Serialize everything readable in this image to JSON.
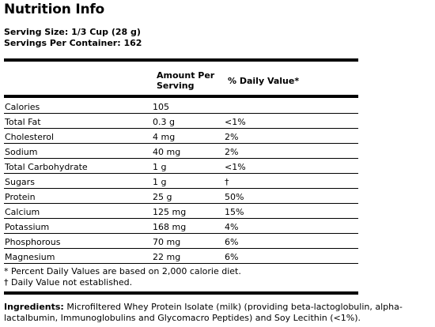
{
  "title": "Nutrition Info",
  "serving_size": "Serving Size: 1/3 Cup (28 g)",
  "servings_per_container": "Servings Per Container: 162",
  "table": {
    "header_amount": "Amount Per Serving",
    "header_dv": "% Daily Value*",
    "rows": [
      {
        "name": "Calories",
        "amount": "105",
        "dv": ""
      },
      {
        "name": "Total Fat",
        "amount": "0.3 g",
        "dv": "<1%"
      },
      {
        "name": "Cholesterol",
        "amount": "4 mg",
        "dv": "2%"
      },
      {
        "name": "Sodium",
        "amount": "40 mg",
        "dv": "2%"
      },
      {
        "name": "Total Carbohydrate",
        "amount": "1 g",
        "dv": "<1%"
      },
      {
        "name": "Sugars",
        "amount": "1 g",
        "dv": "†"
      },
      {
        "name": "Protein",
        "amount": "25 g",
        "dv": "50%"
      },
      {
        "name": "Calcium",
        "amount": "125 mg",
        "dv": "15%"
      },
      {
        "name": "Potassium",
        "amount": "168 mg",
        "dv": "4%"
      },
      {
        "name": "Phosphorous",
        "amount": "70 mg",
        "dv": "6%"
      },
      {
        "name": "Magnesium",
        "amount": "22 mg",
        "dv": "6%"
      }
    ]
  },
  "footnotes": [
    "* Percent Daily Values are based on 2,000 calorie diet.",
    "† Daily Value not established."
  ],
  "ingredients": {
    "label": "Ingredients:",
    "text": "Microfiltered Whey Protein Isolate (milk) (providing beta-lactoglobulin, alpha-lactalbumin, Immunoglobulins and Glycomacro Peptides) and Soy Lecithin (<1%)."
  }
}
